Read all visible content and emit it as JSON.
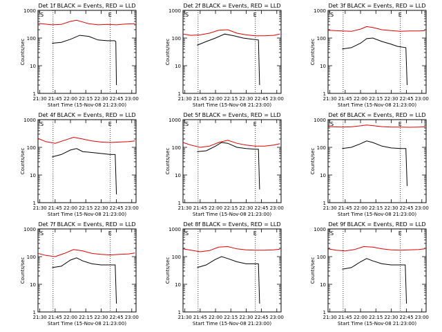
{
  "figure": {
    "xlabel": "Start Time (15-Nov-08 21:23:00)",
    "ylabel": "Counts/sec",
    "x_tick_labels": [
      "21:30",
      "21:45",
      "22:00",
      "22:15",
      "22:30",
      "22:45",
      "23:00"
    ],
    "y_tick_labels": [
      "1",
      "10",
      "100",
      "1000"
    ],
    "marker_start": "S",
    "marker_end": "E",
    "colors": {
      "events": "#000000",
      "lld": "#dd0000",
      "axes": "#000000",
      "background": "#ffffff"
    }
  },
  "chart_data": [
    {
      "type": "line",
      "title": "Det 1f BLACK = Events, RED = LLD",
      "x_range_min": [
        21.47,
        23.07
      ],
      "y_scale": "log",
      "ylim": [
        1,
        1000
      ],
      "grid": false,
      "vlines_min": [
        21.716,
        22.65
      ],
      "x_min": [
        21.7,
        21.85,
        22.0,
        22.15,
        22.3,
        22.45,
        22.6,
        22.75,
        22.9,
        23.05
      ],
      "series": [
        {
          "name": "BLACK = Events",
          "x_min": [
            21.7,
            21.85,
            22.0,
            22.15,
            22.3,
            22.45,
            22.6,
            22.72,
            22.74,
            22.75
          ],
          "values": [
            65,
            70,
            90,
            125,
            115,
            85,
            80,
            80,
            75,
            2
          ]
        },
        {
          "name": "RED = LLD",
          "x_min": [
            21.47,
            21.7,
            21.85,
            22.0,
            22.1,
            22.2,
            22.3,
            22.45,
            22.6,
            22.75,
            22.9,
            23.05
          ],
          "values": [
            340,
            300,
            310,
            400,
            440,
            380,
            330,
            300,
            310,
            300,
            320,
            330
          ]
        }
      ]
    },
    {
      "type": "line",
      "title": "Det 2f BLACK = Events, RED = LLD",
      "x_range_min": [
        21.47,
        23.07
      ],
      "y_scale": "log",
      "ylim": [
        1,
        1000
      ],
      "grid": false,
      "vlines_min": [
        21.716,
        22.65
      ],
      "series": [
        {
          "name": "BLACK = Events",
          "x_min": [
            21.7,
            21.85,
            22.0,
            22.15,
            22.3,
            22.45,
            22.6,
            22.7,
            22.72
          ],
          "values": [
            55,
            75,
            100,
            140,
            120,
            100,
            90,
            85,
            2
          ]
        },
        {
          "name": "RED = LLD",
          "x_min": [
            21.47,
            21.6,
            21.75,
            21.9,
            22.05,
            22.2,
            22.35,
            22.5,
            22.65,
            22.8,
            22.95,
            23.05
          ],
          "values": [
            140,
            125,
            130,
            150,
            190,
            200,
            150,
            130,
            120,
            120,
            125,
            140
          ]
        }
      ]
    },
    {
      "type": "line",
      "title": "Det 3f BLACK = Events, RED = LLD",
      "x_range_min": [
        21.47,
        23.07
      ],
      "y_scale": "log",
      "ylim": [
        1,
        1000
      ],
      "grid": false,
      "vlines_min": [
        21.716,
        22.65
      ],
      "series": [
        {
          "name": "BLACK = Events",
          "x_min": [
            21.7,
            21.85,
            22.0,
            22.1,
            22.2,
            22.35,
            22.5,
            22.6,
            22.74,
            22.76
          ],
          "values": [
            40,
            45,
            65,
            95,
            100,
            75,
            60,
            50,
            45,
            2
          ]
        },
        {
          "name": "RED = LLD",
          "x_min": [
            21.47,
            21.7,
            21.85,
            22.0,
            22.1,
            22.2,
            22.35,
            22.5,
            22.65,
            22.8,
            22.95,
            23.05
          ],
          "values": [
            190,
            180,
            175,
            210,
            260,
            240,
            200,
            185,
            175,
            180,
            180,
            185
          ]
        }
      ]
    },
    {
      "type": "line",
      "title": "Det 4f BLACK = Events, RED = LLD",
      "x_range_min": [
        21.47,
        23.07
      ],
      "y_scale": "log",
      "ylim": [
        1,
        1000
      ],
      "grid": false,
      "vlines_min": [
        21.716,
        22.65
      ],
      "series": [
        {
          "name": "BLACK = Events",
          "x_min": [
            21.7,
            21.85,
            22.0,
            22.1,
            22.2,
            22.35,
            22.5,
            22.65,
            22.73,
            22.75
          ],
          "values": [
            45,
            55,
            80,
            90,
            70,
            65,
            60,
            55,
            55,
            2
          ]
        },
        {
          "name": "RED = LLD",
          "x_min": [
            21.47,
            21.6,
            21.75,
            21.9,
            22.05,
            22.2,
            22.35,
            22.5,
            22.65,
            22.8,
            22.95,
            23.05
          ],
          "values": [
            210,
            160,
            140,
            180,
            230,
            200,
            170,
            155,
            150,
            155,
            160,
            170
          ]
        }
      ]
    },
    {
      "type": "line",
      "title": "Det 5f BLACK = Events, RED = LLD",
      "x_range_min": [
        21.47,
        23.07
      ],
      "y_scale": "log",
      "ylim": [
        1,
        1000
      ],
      "grid": false,
      "vlines_min": [
        21.716,
        22.65
      ],
      "series": [
        {
          "name": "BLACK = Events",
          "x_min": [
            21.7,
            21.85,
            22.0,
            22.1,
            22.2,
            22.35,
            22.5,
            22.65,
            22.7,
            22.72
          ],
          "values": [
            70,
            75,
            110,
            150,
            140,
            100,
            90,
            85,
            85,
            3
          ]
        },
        {
          "name": "RED = LLD",
          "x_min": [
            21.47,
            21.6,
            21.75,
            21.9,
            22.05,
            22.2,
            22.35,
            22.5,
            22.65,
            22.8,
            22.95,
            23.05
          ],
          "values": [
            150,
            120,
            100,
            110,
            150,
            180,
            140,
            120,
            110,
            110,
            120,
            135
          ]
        }
      ]
    },
    {
      "type": "line",
      "title": "Det 6f BLACK = Events, RED = LLD",
      "x_range_min": [
        21.47,
        23.07
      ],
      "y_scale": "log",
      "ylim": [
        1,
        1000
      ],
      "grid": false,
      "vlines_min": [
        21.716,
        22.65
      ],
      "series": [
        {
          "name": "BLACK = Events",
          "x_min": [
            21.7,
            21.85,
            22.0,
            22.1,
            22.2,
            22.35,
            22.5,
            22.65,
            22.74,
            22.76
          ],
          "values": [
            90,
            100,
            135,
            170,
            150,
            110,
            95,
            90,
            90,
            4
          ]
        },
        {
          "name": "RED = LLD",
          "x_min": [
            21.47,
            21.7,
            21.85,
            22.0,
            22.1,
            22.2,
            22.35,
            22.5,
            22.65,
            22.8,
            22.95,
            23.05
          ],
          "values": [
            560,
            540,
            550,
            600,
            640,
            610,
            560,
            540,
            540,
            530,
            540,
            550
          ]
        }
      ]
    },
    {
      "type": "line",
      "title": "Det 7f BLACK = Events, RED = LLD",
      "x_range_min": [
        21.47,
        23.07
      ],
      "y_scale": "log",
      "ylim": [
        1,
        1000
      ],
      "grid": false,
      "vlines_min": [
        21.716,
        22.65
      ],
      "series": [
        {
          "name": "BLACK = Events",
          "x_min": [
            21.7,
            21.85,
            22.0,
            22.1,
            22.2,
            22.35,
            22.5,
            22.65,
            22.73,
            22.75
          ],
          "values": [
            40,
            45,
            75,
            90,
            70,
            55,
            50,
            50,
            50,
            2
          ]
        },
        {
          "name": "RED = LLD",
          "x_min": [
            21.47,
            21.6,
            21.75,
            21.9,
            22.05,
            22.2,
            22.35,
            22.5,
            22.65,
            22.8,
            22.95,
            23.05
          ],
          "values": [
            130,
            110,
            100,
            130,
            180,
            160,
            130,
            120,
            115,
            120,
            125,
            135
          ]
        }
      ]
    },
    {
      "type": "line",
      "title": "Det 8f BLACK = Events, RED = LLD",
      "x_range_min": [
        21.47,
        23.07
      ],
      "y_scale": "log",
      "ylim": [
        1,
        1000
      ],
      "grid": false,
      "vlines_min": [
        21.716,
        22.65
      ],
      "series": [
        {
          "name": "BLACK = Events",
          "x_min": [
            21.7,
            21.85,
            22.0,
            22.1,
            22.2,
            22.35,
            22.5,
            22.65,
            22.7,
            22.72
          ],
          "values": [
            40,
            50,
            80,
            100,
            85,
            65,
            55,
            55,
            55,
            2
          ]
        },
        {
          "name": "RED = LLD",
          "x_min": [
            21.47,
            21.6,
            21.75,
            21.9,
            22.05,
            22.2,
            22.35,
            22.5,
            22.65,
            22.8,
            22.95,
            23.05
          ],
          "values": [
            190,
            170,
            150,
            165,
            220,
            230,
            190,
            175,
            170,
            170,
            175,
            185
          ]
        }
      ]
    },
    {
      "type": "line",
      "title": "Det 9f BLACK = Events, RED = LLD",
      "x_range_min": [
        21.47,
        23.07
      ],
      "y_scale": "log",
      "ylim": [
        1,
        1000
      ],
      "grid": false,
      "vlines_min": [
        21.716,
        22.65
      ],
      "series": [
        {
          "name": "BLACK = Events",
          "x_min": [
            21.7,
            21.85,
            22.0,
            22.1,
            22.2,
            22.35,
            22.5,
            22.65,
            22.73,
            22.75
          ],
          "values": [
            35,
            40,
            65,
            85,
            70,
            55,
            50,
            50,
            50,
            2
          ]
        },
        {
          "name": "RED = LLD",
          "x_min": [
            21.47,
            21.6,
            21.75,
            21.9,
            22.05,
            22.2,
            22.35,
            22.5,
            22.65,
            22.8,
            22.95,
            23.05
          ],
          "values": [
            190,
            170,
            160,
            180,
            230,
            220,
            190,
            175,
            170,
            175,
            180,
            190
          ]
        }
      ]
    }
  ]
}
